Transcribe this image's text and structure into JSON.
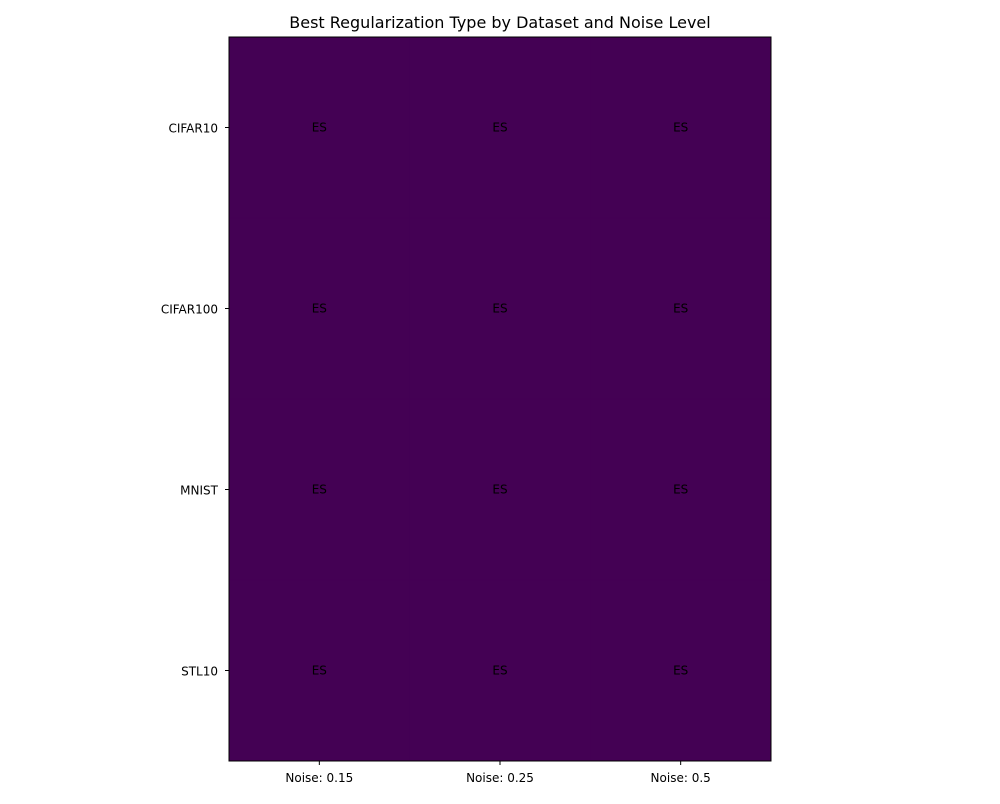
{
  "chart_data": {
    "type": "heatmap",
    "title": "Best Regularization Type by Dataset and Noise Level",
    "xlabel": "",
    "ylabel": "",
    "x_categories": [
      "Noise: 0.15",
      "Noise: 0.25",
      "Noise: 0.5"
    ],
    "y_categories": [
      "CIFAR10",
      "CIFAR100",
      "MNIST",
      "STL10"
    ],
    "cells": [
      [
        "ES",
        "ES",
        "ES"
      ],
      [
        "ES",
        "ES",
        "ES"
      ],
      [
        "ES",
        "ES",
        "ES"
      ],
      [
        "ES",
        "ES",
        "ES"
      ]
    ],
    "colormap": "viridis",
    "cell_color": "#440154",
    "grid": false,
    "legend": "none"
  }
}
